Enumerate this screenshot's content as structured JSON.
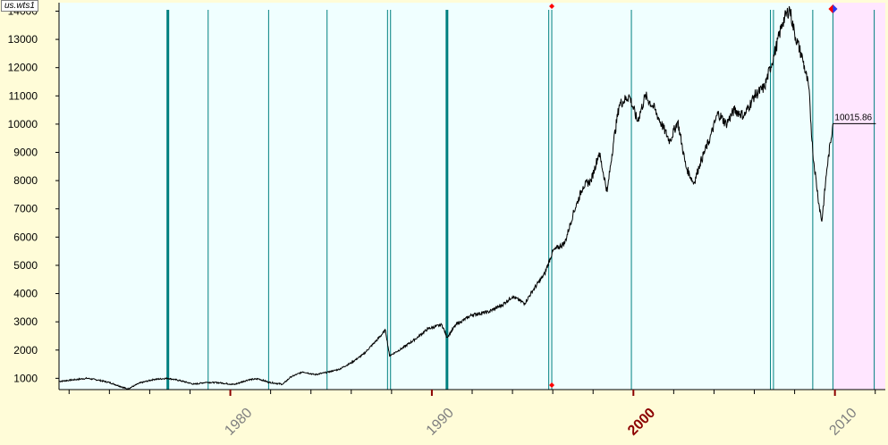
{
  "file_label": "us.wts1",
  "colors": {
    "background": "#fffcd8",
    "plot_background": "#f0ffff",
    "future_background": "#ffe6ff",
    "event_lines": "#008080",
    "price_line": "#000000",
    "marker_red": "#ff0000",
    "marker_blue": "#1e3cff"
  },
  "last_value_label": "10015.86",
  "chart_data": {
    "type": "line",
    "title": "",
    "xlabel": "",
    "ylabel": "",
    "xlim": [
      1971.5,
      2012.5
    ],
    "ylim": [
      600,
      14300
    ],
    "y_ticks": [
      1000,
      2000,
      3000,
      4000,
      5000,
      6000,
      7000,
      8000,
      9000,
      10000,
      11000,
      12000,
      13000,
      14000
    ],
    "y_tick_labels": [
      "1000",
      "2000",
      "3000",
      "4000",
      "5000",
      "6000",
      "7000",
      "8000",
      "9000",
      "10000",
      "11000",
      "12000",
      "13000",
      "14000"
    ],
    "x_ticks": [
      1980,
      1990,
      2000,
      2010
    ],
    "x_tick_labels": [
      "1980",
      "1990",
      "2000",
      "2010"
    ],
    "x_tick_highlight": "2000",
    "grid": false,
    "future_shade_start": 2009.9,
    "event_lines": [
      {
        "x": 1976.9,
        "thick": true
      },
      {
        "x": 1978.9,
        "thick": false
      },
      {
        "x": 1981.9,
        "thick": false
      },
      {
        "x": 1984.8,
        "thick": false
      },
      {
        "x": 1987.8,
        "thick": false
      },
      {
        "x": 1987.95,
        "thick": false
      },
      {
        "x": 1990.75,
        "thick": true
      },
      {
        "x": 1995.8,
        "thick": false
      },
      {
        "x": 1995.95,
        "thick": false
      },
      {
        "x": 1999.9,
        "thick": false
      },
      {
        "x": 2006.8,
        "thick": false
      },
      {
        "x": 2006.95,
        "thick": false
      },
      {
        "x": 2008.9,
        "thick": false
      },
      {
        "x": 2009.9,
        "thick": false
      },
      {
        "x": 2011.95,
        "thick": false
      }
    ],
    "series": [
      {
        "points": [
          [
            1971.5,
            890
          ],
          [
            1972.0,
            930
          ],
          [
            1972.9,
            1000
          ],
          [
            1973.5,
            930
          ],
          [
            1974.0,
            850
          ],
          [
            1974.6,
            700
          ],
          [
            1974.9,
            620
          ],
          [
            1975.5,
            830
          ],
          [
            1976.2,
            960
          ],
          [
            1976.9,
            1000
          ],
          [
            1977.5,
            920
          ],
          [
            1978.2,
            790
          ],
          [
            1978.8,
            860
          ],
          [
            1979.5,
            840
          ],
          [
            1980.2,
            780
          ],
          [
            1980.9,
            950
          ],
          [
            1981.4,
            980
          ],
          [
            1981.9,
            860
          ],
          [
            1982.6,
            790
          ],
          [
            1983.0,
            1050
          ],
          [
            1983.6,
            1230
          ],
          [
            1984.2,
            1130
          ],
          [
            1984.8,
            1210
          ],
          [
            1985.4,
            1320
          ],
          [
            1986.0,
            1550
          ],
          [
            1986.6,
            1850
          ],
          [
            1987.2,
            2300
          ],
          [
            1987.7,
            2700
          ],
          [
            1987.9,
            1800
          ],
          [
            1988.5,
            2050
          ],
          [
            1989.2,
            2400
          ],
          [
            1989.8,
            2750
          ],
          [
            1990.5,
            2900
          ],
          [
            1990.75,
            2450
          ],
          [
            1991.2,
            2900
          ],
          [
            1992.0,
            3250
          ],
          [
            1992.8,
            3350
          ],
          [
            1993.5,
            3600
          ],
          [
            1994.0,
            3900
          ],
          [
            1994.6,
            3650
          ],
          [
            1995.0,
            4100
          ],
          [
            1995.6,
            4700
          ],
          [
            1996.0,
            5500
          ],
          [
            1996.6,
            5800
          ],
          [
            1997.0,
            6800
          ],
          [
            1997.5,
            7800
          ],
          [
            1997.9,
            8000
          ],
          [
            1998.3,
            9000
          ],
          [
            1998.7,
            7600
          ],
          [
            1999.0,
            9300
          ],
          [
            1999.3,
            10700
          ],
          [
            1999.8,
            11000
          ],
          [
            2000.2,
            10100
          ],
          [
            2000.6,
            11000
          ],
          [
            2001.0,
            10600
          ],
          [
            2001.4,
            10000
          ],
          [
            2001.8,
            9400
          ],
          [
            2002.2,
            10100
          ],
          [
            2002.6,
            8500
          ],
          [
            2003.0,
            7900
          ],
          [
            2003.3,
            8600
          ],
          [
            2003.8,
            9500
          ],
          [
            2004.2,
            10400
          ],
          [
            2004.6,
            10000
          ],
          [
            2005.0,
            10500
          ],
          [
            2005.5,
            10300
          ],
          [
            2006.0,
            11000
          ],
          [
            2006.5,
            11300
          ],
          [
            2007.0,
            12500
          ],
          [
            2007.4,
            13600
          ],
          [
            2007.75,
            14100
          ],
          [
            2008.0,
            13200
          ],
          [
            2008.4,
            12300
          ],
          [
            2008.7,
            11300
          ],
          [
            2008.9,
            9000
          ],
          [
            2009.2,
            7200
          ],
          [
            2009.35,
            6550
          ],
          [
            2009.6,
            8400
          ],
          [
            2009.9,
            10015
          ]
        ]
      }
    ]
  }
}
